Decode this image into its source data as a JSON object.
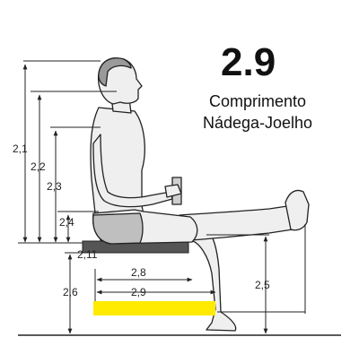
{
  "heading": {
    "number": "2.9",
    "line1": "Comprimento",
    "line2": "Nádega-Joelho"
  },
  "labels": {
    "d21": "2,1",
    "d22": "2,2",
    "d23": "2,3",
    "d24": "2,4",
    "d211": "2,11",
    "d26": "2,6",
    "d28": "2,8",
    "d29": "2,9",
    "d25": "2,5"
  },
  "colors": {
    "highlight": "#ffeb00",
    "line": "#222222",
    "skin": "#efefef"
  },
  "highlighted_measure": "2,9"
}
